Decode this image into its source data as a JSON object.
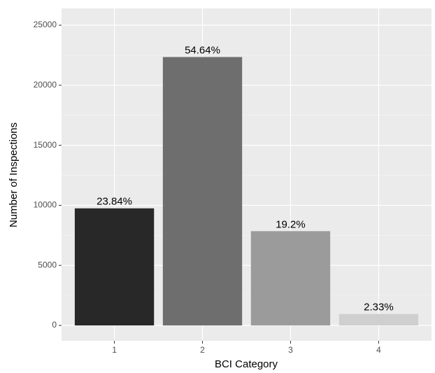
{
  "chart_data": {
    "type": "bar",
    "x_label": "BCI Category",
    "y_label": "Number of Inspections",
    "categories": [
      "1",
      "2",
      "3",
      "4"
    ],
    "values": [
      9750,
      22350,
      7850,
      950
    ],
    "colors": [
      "#282828",
      "#6e6e6e",
      "#9b9b9b",
      "#cfcfcf"
    ],
    "percent_labels": [
      "23.84%",
      "54.64%",
      "19.2%",
      "2.33%"
    ],
    "ylim": [
      -1280,
      26400
    ],
    "yticks": [
      0,
      5000,
      10000,
      15000,
      20000,
      25000
    ],
    "grid": true
  }
}
